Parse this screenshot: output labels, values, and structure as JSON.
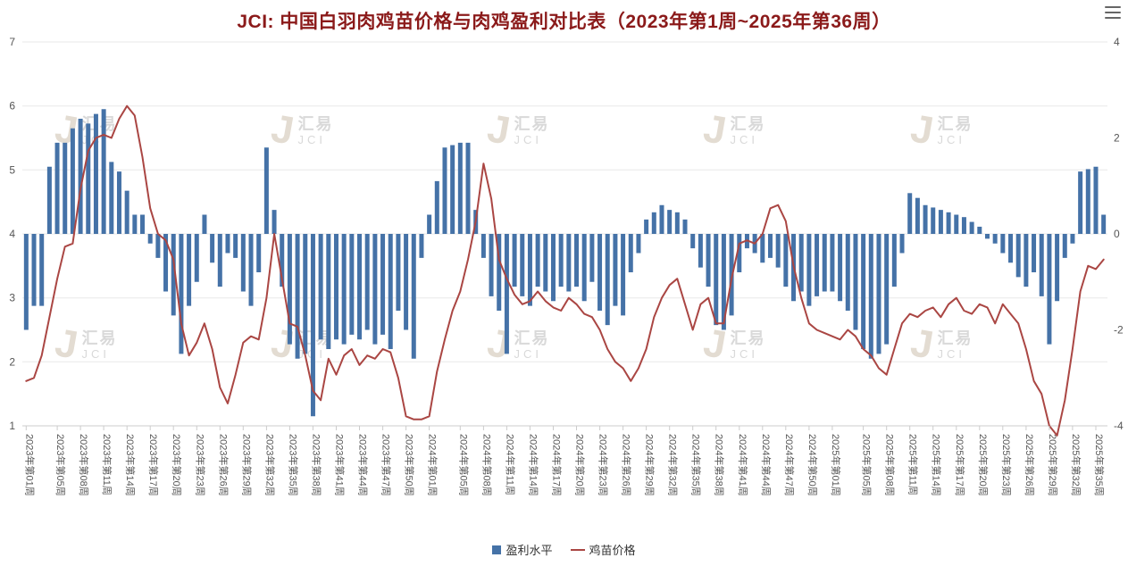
{
  "page": {
    "title": "JCI: 中国白羽肉鸡苗价格与肉鸡盈利对比表（2023年第1周~2025年第36周）"
  },
  "watermark": {
    "logo": "J",
    "cn": "汇易",
    "en": "JCI"
  },
  "legend": {
    "items": [
      {
        "label": "盈利水平",
        "marker": "square",
        "color": "#4572A7"
      },
      {
        "label": "鸡苗价格",
        "marker": "line",
        "color": "#AA4643"
      }
    ]
  },
  "chart_data": {
    "type": "bar+line combo",
    "title": "JCI: 中国白羽肉鸡苗价格与肉鸡盈利对比表（2023年第1周~2025年第36周）",
    "x_description": "weekly, 2023 week 1 through 2025 week 36 (140 points)",
    "left_axis": {
      "min": 1,
      "max": 7,
      "ticks": [
        7,
        6,
        5,
        4,
        3,
        2,
        1
      ],
      "applies_to": "鸡苗价格"
    },
    "right_axis": {
      "min": -4,
      "max": 4,
      "ticks": [
        4,
        2,
        0,
        -2,
        -4
      ],
      "applies_to": "盈利水平"
    },
    "grid": "horizontal only",
    "legend_position": "bottom center",
    "x_ticks": [
      {
        "i": 0,
        "label": "2023年第01周"
      },
      {
        "i": 4,
        "label": "2023年第05周"
      },
      {
        "i": 7,
        "label": "2023年第08周"
      },
      {
        "i": 10,
        "label": "2023年第11周"
      },
      {
        "i": 13,
        "label": "2023年第14周"
      },
      {
        "i": 16,
        "label": "2023年第17周"
      },
      {
        "i": 19,
        "label": "2023年第20周"
      },
      {
        "i": 22,
        "label": "2023年第23周"
      },
      {
        "i": 25,
        "label": "2023年第26周"
      },
      {
        "i": 28,
        "label": "2023年第29周"
      },
      {
        "i": 31,
        "label": "2023年第32周"
      },
      {
        "i": 34,
        "label": "2023年第35周"
      },
      {
        "i": 37,
        "label": "2023年第38周"
      },
      {
        "i": 40,
        "label": "2023年第41周"
      },
      {
        "i": 43,
        "label": "2023年第44周"
      },
      {
        "i": 46,
        "label": "2023年第47周"
      },
      {
        "i": 49,
        "label": "2023年第50周"
      },
      {
        "i": 52,
        "label": "2024年第01周"
      },
      {
        "i": 56,
        "label": "2024年第05周"
      },
      {
        "i": 59,
        "label": "2024年第08周"
      },
      {
        "i": 62,
        "label": "2024年第11周"
      },
      {
        "i": 65,
        "label": "2024年第14周"
      },
      {
        "i": 68,
        "label": "2024年第17周"
      },
      {
        "i": 71,
        "label": "2024年第20周"
      },
      {
        "i": 74,
        "label": "2024年第23周"
      },
      {
        "i": 77,
        "label": "2024年第26周"
      },
      {
        "i": 80,
        "label": "2024年第29周"
      },
      {
        "i": 83,
        "label": "2024年第32周"
      },
      {
        "i": 86,
        "label": "2024年第35周"
      },
      {
        "i": 89,
        "label": "2024年第38周"
      },
      {
        "i": 92,
        "label": "2024年第41周"
      },
      {
        "i": 95,
        "label": "2024年第44周"
      },
      {
        "i": 98,
        "label": "2024年第47周"
      },
      {
        "i": 101,
        "label": "2024年第50周"
      },
      {
        "i": 104,
        "label": "2025年第01周"
      },
      {
        "i": 108,
        "label": "2025年第05周"
      },
      {
        "i": 111,
        "label": "2025年第08周"
      },
      {
        "i": 114,
        "label": "2025年第11周"
      },
      {
        "i": 117,
        "label": "2025年第14周"
      },
      {
        "i": 120,
        "label": "2025年第17周"
      },
      {
        "i": 123,
        "label": "2025年第20周"
      },
      {
        "i": 126,
        "label": "2025年第23周"
      },
      {
        "i": 129,
        "label": "2025年第26周"
      },
      {
        "i": 132,
        "label": "2025年第29周"
      },
      {
        "i": 135,
        "label": "2025年第32周"
      },
      {
        "i": 138,
        "label": "2025年第35周"
      }
    ],
    "series": [
      {
        "name": "盈利水平",
        "type": "column",
        "axis": "right",
        "color": "#4572A7",
        "values": [
          -2.0,
          -1.5,
          -1.5,
          1.4,
          1.9,
          1.9,
          2.2,
          2.4,
          2.3,
          2.5,
          2.6,
          1.5,
          1.3,
          0.9,
          0.4,
          0.4,
          -0.2,
          -0.5,
          -1.2,
          -1.7,
          -2.5,
          -1.5,
          -1.0,
          0.4,
          -0.6,
          -1.1,
          -0.4,
          -0.5,
          -1.2,
          -1.5,
          -0.8,
          1.8,
          0.5,
          -1.1,
          -2.3,
          -2.6,
          -2.5,
          -3.8,
          -2.2,
          -2.4,
          -2.2,
          -2.3,
          -2.1,
          -2.2,
          -2.0,
          -2.3,
          -2.1,
          -2.4,
          -1.6,
          -2.0,
          -2.6,
          -0.5,
          0.4,
          1.1,
          1.8,
          1.85,
          1.9,
          1.9,
          0.5,
          -0.5,
          -1.3,
          -1.6,
          -2.5,
          -1.1,
          -1.3,
          -1.5,
          -1.1,
          -1.2,
          -1.4,
          -1.1,
          -1.2,
          -1.1,
          -1.4,
          -1.0,
          -1.6,
          -1.9,
          -1.5,
          -1.7,
          -0.8,
          -0.4,
          0.3,
          0.45,
          0.6,
          0.5,
          0.45,
          0.3,
          -0.3,
          -0.7,
          -1.1,
          -1.9,
          -2.0,
          -1.7,
          -0.8,
          -0.3,
          -0.4,
          -0.6,
          -0.5,
          -0.7,
          -1.1,
          -1.4,
          -1.2,
          -1.5,
          -1.3,
          -1.2,
          -1.2,
          -1.4,
          -1.6,
          -2.0,
          -2.4,
          -2.6,
          -2.5,
          -2.3,
          -1.1,
          -0.4,
          0.85,
          0.75,
          0.6,
          0.55,
          0.5,
          0.45,
          0.4,
          0.35,
          0.25,
          0.15,
          -0.1,
          -0.2,
          -0.4,
          -0.6,
          -0.9,
          -1.1,
          -0.8,
          -1.3,
          -2.3,
          -1.4,
          -0.5,
          -0.2,
          1.3,
          1.35,
          1.4,
          0.4
        ]
      },
      {
        "name": "鸡苗价格",
        "type": "line",
        "axis": "left",
        "color": "#AA4643",
        "values": [
          1.7,
          1.75,
          2.1,
          2.7,
          3.3,
          3.8,
          3.85,
          4.7,
          5.3,
          5.5,
          5.55,
          5.5,
          5.8,
          6.0,
          5.85,
          5.2,
          4.4,
          4.0,
          3.9,
          3.6,
          2.6,
          2.1,
          2.3,
          2.6,
          2.2,
          1.6,
          1.35,
          1.8,
          2.3,
          2.4,
          2.35,
          3.0,
          4.0,
          3.3,
          2.6,
          2.55,
          2.1,
          1.55,
          1.4,
          2.05,
          1.8,
          2.1,
          2.2,
          1.95,
          2.1,
          2.05,
          2.2,
          2.15,
          1.75,
          1.15,
          1.1,
          1.1,
          1.15,
          1.85,
          2.35,
          2.8,
          3.1,
          3.6,
          4.2,
          5.1,
          4.55,
          3.6,
          3.3,
          3.05,
          2.9,
          2.95,
          3.1,
          2.95,
          2.85,
          2.8,
          3.0,
          2.9,
          2.75,
          2.7,
          2.5,
          2.2,
          2.0,
          1.9,
          1.7,
          1.9,
          2.2,
          2.7,
          3.0,
          3.2,
          3.3,
          2.9,
          2.5,
          2.9,
          3.0,
          2.6,
          2.6,
          3.3,
          3.85,
          3.9,
          3.85,
          4.0,
          4.4,
          4.45,
          4.2,
          3.5,
          3.0,
          2.6,
          2.5,
          2.45,
          2.4,
          2.35,
          2.5,
          2.4,
          2.2,
          2.1,
          1.9,
          1.8,
          2.2,
          2.6,
          2.75,
          2.7,
          2.8,
          2.85,
          2.7,
          2.9,
          3.0,
          2.8,
          2.75,
          2.9,
          2.85,
          2.6,
          2.9,
          2.75,
          2.6,
          2.2,
          1.7,
          1.5,
          1.0,
          0.85,
          1.4,
          2.2,
          3.1,
          3.5,
          3.45,
          3.6
        ]
      }
    ]
  }
}
